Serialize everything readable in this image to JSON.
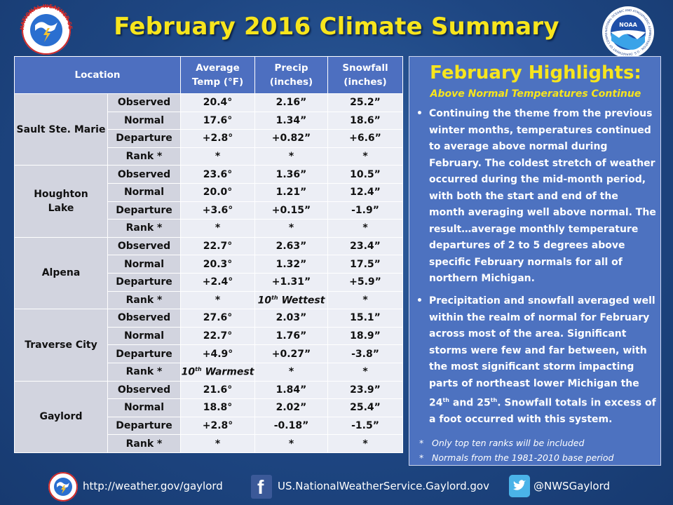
{
  "title": "February 2016 Climate Summary",
  "table": {
    "headers": {
      "location": "Location",
      "avg_temp": [
        "Average",
        "Temp (°F)"
      ],
      "precip": [
        "Precip",
        "(inches)"
      ],
      "snowfall": [
        "Snowfall",
        "(inches)"
      ]
    },
    "locations": [
      {
        "name": [
          "Sault Ste. Marie"
        ],
        "rows": [
          {
            "label": "Observed",
            "temp": "20.4°",
            "precip": "2.16”",
            "snow": "25.2”"
          },
          {
            "label": "Normal",
            "temp": "17.6°",
            "precip": "1.34”",
            "snow": "18.6”"
          },
          {
            "label": "Departure",
            "temp": "+2.8°",
            "precip": "+0.82”",
            "snow": "+6.6”"
          },
          {
            "label": "Rank *",
            "temp": "*",
            "precip": "*",
            "snow": "*"
          }
        ]
      },
      {
        "name": [
          "Houghton",
          "Lake"
        ],
        "rows": [
          {
            "label": "Observed",
            "temp": "23.6°",
            "precip": "1.36”",
            "snow": "10.5”"
          },
          {
            "label": "Normal",
            "temp": "20.0°",
            "precip": "1.21”",
            "snow": "12.4”"
          },
          {
            "label": "Departure",
            "temp": "+3.6°",
            "precip": "+0.15”",
            "snow": "-1.9”"
          },
          {
            "label": "Rank *",
            "temp": "*",
            "precip": "*",
            "snow": "*"
          }
        ]
      },
      {
        "name": [
          "Alpena"
        ],
        "rows": [
          {
            "label": "Observed",
            "temp": "22.7°",
            "precip": "2.63”",
            "snow": "23.4”"
          },
          {
            "label": "Normal",
            "temp": "20.3°",
            "precip": "1.32”",
            "snow": "17.5”"
          },
          {
            "label": "Departure",
            "temp": "+2.4°",
            "precip": "+1.31”",
            "snow": "+5.9”"
          },
          {
            "label": "Rank *",
            "temp": "*",
            "precip": {
              "num": "10",
              "sup": "th",
              "rest": " Wettest"
            },
            "snow": "*"
          }
        ]
      },
      {
        "name": [
          "Traverse City"
        ],
        "rows": [
          {
            "label": "Observed",
            "temp": "27.6°",
            "precip": "2.03”",
            "snow": "15.1”"
          },
          {
            "label": "Normal",
            "temp": "22.7°",
            "precip": "1.76”",
            "snow": "18.9”"
          },
          {
            "label": "Departure",
            "temp": "+4.9°",
            "precip": "+0.27”",
            "snow": "-3.8”"
          },
          {
            "label": "Rank *",
            "temp": {
              "num": "10",
              "sup": "th",
              "rest": " Warmest"
            },
            "precip": "*",
            "snow": "*"
          }
        ]
      },
      {
        "name": [
          "Gaylord"
        ],
        "rows": [
          {
            "label": "Observed",
            "temp": "21.6°",
            "precip": "1.84”",
            "snow": "23.9”"
          },
          {
            "label": "Normal",
            "temp": "18.8°",
            "precip": "2.02”",
            "snow": "25.4”"
          },
          {
            "label": "Departure",
            "temp": "+2.8°",
            "precip": "-0.18”",
            "snow": "-1.5”"
          },
          {
            "label": "Rank *",
            "temp": "*",
            "precip": "*",
            "snow": "*"
          }
        ]
      }
    ]
  },
  "highlights": {
    "title": "February Highlights:",
    "subtitle": "Above Normal Temperatures Continue",
    "bullet1": "Continuing the theme from the previous winter months, temperatures continued to average above normal during February.  The coldest stretch of weather occurred during the mid-month period, with both the start and end of the month averaging well above normal.  The result…average monthly temperature departures of 2 to 5 degrees above specific February normals for all of northern Michigan.",
    "bullet2_a": "Precipitation and snowfall averaged well within the realm of normal for February across most of the area.  Significant storms were few and far between, with the most significant storm impacting parts of northeast lower Michigan the 24",
    "bullet2_sup1": "th",
    "bullet2_b": " and 25",
    "bullet2_sup2": "th",
    "bullet2_c": ".  Snowfall totals in excess of a foot occurred with this system.",
    "note1": "Only top ten ranks will be included",
    "note2": "Normals from the 1981-2010 base period",
    "bullet_symbol": "•",
    "note_symbol": "*"
  },
  "footer": {
    "website": "http://weather.gov/gaylord",
    "facebook": "US.NationalWeatherService.Gaylord.gov",
    "twitter": "@NWSGaylord",
    "facebook_glyph": "f"
  },
  "logos": {
    "nws_ring_text": "NATIONAL WEATHER SERVICE",
    "noaa_text": "NOAA",
    "noaa_ring_text": "NATIONAL OCEANIC AND ATMOSPHERIC ADMINISTRATION · U.S. DEPARTMENT OF COMMERCE"
  },
  "colors": {
    "title_yellow": "#f7e51d",
    "rank_red": "#d10000",
    "header_blue": "#4d6fc0",
    "highlight_blue": "#4d72c0"
  }
}
